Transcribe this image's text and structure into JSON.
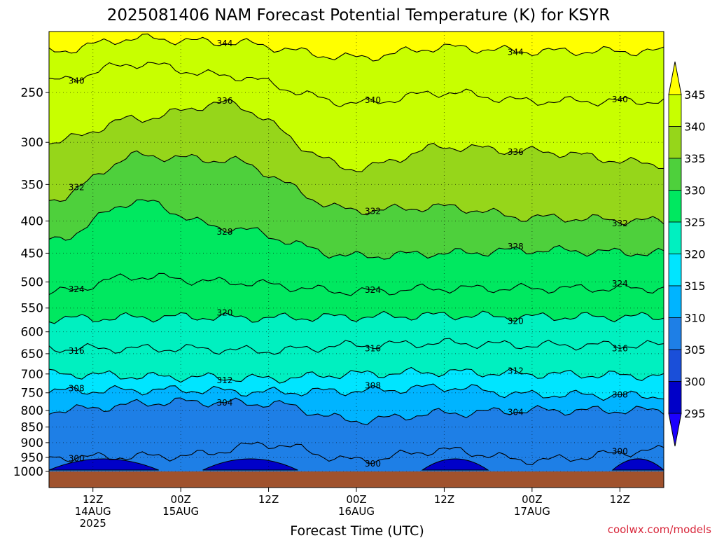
{
  "chart_data": {
    "type": "heatmap",
    "title": "2025081406 NAM Forecast Potential Temperature (K) for KSYR",
    "xlabel": "Forecast Time (UTC)",
    "credit": "coolwx.com/models",
    "y_ticks": [
      "250",
      "300",
      "350",
      "400",
      "450",
      "500",
      "550",
      "600",
      "650",
      "700",
      "750",
      "800",
      "850",
      "900",
      "950",
      "1000"
    ],
    "x_ticks": [
      {
        "time": "12Z",
        "date": "14AUG",
        "year": "2025",
        "hour": 12
      },
      {
        "time": "00Z",
        "date": "15AUG",
        "year": "",
        "hour": 24
      },
      {
        "time": "12Z",
        "date": "",
        "year": "",
        "hour": 36
      },
      {
        "time": "00Z",
        "date": "16AUG",
        "year": "",
        "hour": 48
      },
      {
        "time": "12Z",
        "date": "",
        "year": "",
        "hour": 60
      },
      {
        "time": "00Z",
        "date": "17AUG",
        "year": "",
        "hour": 72
      },
      {
        "time": "12Z",
        "date": "",
        "year": "",
        "hour": 84
      }
    ],
    "x_range_hours": [
      6,
      90
    ],
    "y_range_hpa": [
      200,
      1000
    ],
    "colorbar": {
      "levels": [
        "295",
        "300",
        "305",
        "310",
        "315",
        "320",
        "325",
        "330",
        "335",
        "340",
        "345"
      ],
      "colors": [
        "#1c00ff",
        "#0000c8",
        "#1a4fd9",
        "#1e7fe6",
        "#00b4ff",
        "#00e5ff",
        "#00f0c0",
        "#00e860",
        "#4ed03c",
        "#96d61a",
        "#c8ff00",
        "#ffff00"
      ],
      "extend": "both"
    },
    "approx_isentropes": [
      {
        "theta": 300,
        "pressures_by_hour": [
          [
            6,
            950
          ],
          [
            24,
            945
          ],
          [
            36,
            905
          ],
          [
            48,
            960
          ],
          [
            60,
            925
          ],
          [
            72,
            960
          ],
          [
            90,
            925
          ]
        ]
      },
      {
        "theta": 304,
        "pressures_by_hour": [
          [
            6,
            800
          ],
          [
            24,
            775
          ],
          [
            36,
            780
          ],
          [
            48,
            830
          ],
          [
            60,
            808
          ],
          [
            72,
            800
          ],
          [
            90,
            800
          ]
        ]
      },
      {
        "theta": 308,
        "pressures_by_hour": [
          [
            6,
            745
          ],
          [
            24,
            742
          ],
          [
            36,
            748
          ],
          [
            48,
            745
          ],
          [
            60,
            735
          ],
          [
            72,
            755
          ],
          [
            90,
            758
          ]
        ]
      },
      {
        "theta": 312,
        "pressures_by_hour": [
          [
            6,
            700
          ],
          [
            24,
            708
          ],
          [
            36,
            712
          ],
          [
            48,
            700
          ],
          [
            60,
            695
          ],
          [
            72,
            700
          ],
          [
            90,
            705
          ]
        ]
      },
      {
        "theta": 316,
        "pressures_by_hour": [
          [
            6,
            638
          ],
          [
            24,
            638
          ],
          [
            36,
            643
          ],
          [
            48,
            630
          ],
          [
            60,
            625
          ],
          [
            72,
            630
          ],
          [
            90,
            630
          ]
        ]
      },
      {
        "theta": 320,
        "pressures_by_hour": [
          [
            6,
            572
          ],
          [
            24,
            568
          ],
          [
            36,
            570
          ],
          [
            48,
            568
          ],
          [
            60,
            565
          ],
          [
            72,
            568
          ],
          [
            90,
            568
          ]
        ]
      },
      {
        "theta": 324,
        "pressures_by_hour": [
          [
            6,
            520
          ],
          [
            18,
            490
          ],
          [
            30,
            500
          ],
          [
            48,
            518
          ],
          [
            60,
            512
          ],
          [
            72,
            512
          ],
          [
            90,
            512
          ]
        ]
      },
      {
        "theta": 328,
        "pressures_by_hour": [
          [
            6,
            430
          ],
          [
            18,
            372
          ],
          [
            30,
            410
          ],
          [
            48,
            455
          ],
          [
            60,
            450
          ],
          [
            72,
            445
          ],
          [
            90,
            450
          ]
        ]
      },
      {
        "theta": 332,
        "pressures_by_hour": [
          [
            6,
            370
          ],
          [
            18,
            315
          ],
          [
            30,
            320
          ],
          [
            48,
            385
          ],
          [
            60,
            380
          ],
          [
            72,
            395
          ],
          [
            90,
            400
          ]
        ]
      },
      {
        "theta": 336,
        "pressures_by_hour": [
          [
            6,
            300
          ],
          [
            18,
            275
          ],
          [
            30,
            260
          ],
          [
            48,
            330
          ],
          [
            60,
            305
          ],
          [
            72,
            310
          ],
          [
            90,
            325
          ]
        ]
      },
      {
        "theta": 340,
        "pressures_by_hour": [
          [
            6,
            240
          ],
          [
            18,
            225
          ],
          [
            30,
            235
          ],
          [
            48,
            260
          ],
          [
            60,
            250
          ],
          [
            72,
            258
          ],
          [
            90,
            258
          ]
        ]
      },
      {
        "theta": 344,
        "pressures_by_hour": [
          [
            6,
            215
          ],
          [
            18,
            205
          ],
          [
            30,
            208
          ],
          [
            48,
            220
          ],
          [
            60,
            212
          ],
          [
            72,
            215
          ],
          [
            90,
            215
          ]
        ]
      }
    ]
  }
}
